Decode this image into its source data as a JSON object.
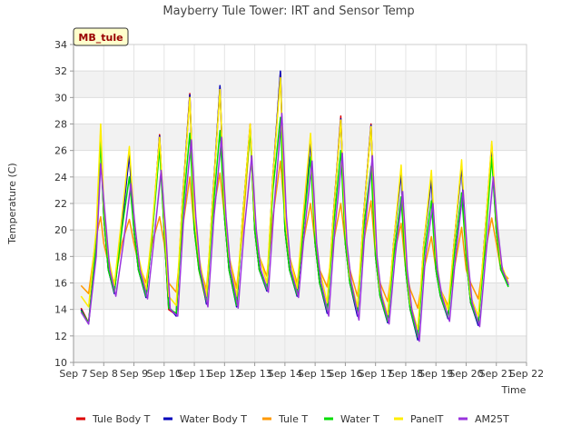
{
  "chart_data": {
    "type": "line",
    "title": "Mayberry Tule Tower: IRT and Sensor Temp",
    "xlabel": "Time",
    "ylabel": "Temperature (C)",
    "ylim": [
      10,
      34
    ],
    "xlim": [
      7,
      22
    ],
    "yticks": [
      10,
      12,
      14,
      16,
      18,
      20,
      22,
      24,
      26,
      28,
      30,
      32,
      34
    ],
    "xticks": [
      {
        "v": 7,
        "label": "Sep 7"
      },
      {
        "v": 8,
        "label": "Sep 8"
      },
      {
        "v": 9,
        "label": "Sep 9"
      },
      {
        "v": 10,
        "label": "Sep 10"
      },
      {
        "v": 11,
        "label": "Sep 11"
      },
      {
        "v": 12,
        "label": "Sep 12"
      },
      {
        "v": 13,
        "label": "Sep 13"
      },
      {
        "v": 14,
        "label": "Sep 14"
      },
      {
        "v": 15,
        "label": "Sep 15"
      },
      {
        "v": 16,
        "label": "Sep 16"
      },
      {
        "v": 17,
        "label": "Sep 17"
      },
      {
        "v": 18,
        "label": "Sep 18"
      },
      {
        "v": 19,
        "label": "Sep 19"
      },
      {
        "v": 20,
        "label": "Sep 20"
      },
      {
        "v": 21,
        "label": "Sep 21"
      },
      {
        "v": 22,
        "label": "Sep 22"
      }
    ],
    "grid": true,
    "annotation": "MB_tule",
    "legend_position": "bottom",
    "series": [
      {
        "name": "Tule Body T",
        "color": "#dd0000",
        "x": [
          7.25,
          7.5,
          7.75,
          7.9,
          8.0,
          8.15,
          8.35,
          8.6,
          8.85,
          9.0,
          9.15,
          9.4,
          9.6,
          9.85,
          10.0,
          10.15,
          10.4,
          10.6,
          10.85,
          11.0,
          11.15,
          11.4,
          11.6,
          11.85,
          12.0,
          12.15,
          12.4,
          12.6,
          12.85,
          13.0,
          13.15,
          13.4,
          13.6,
          13.85,
          14.0,
          14.15,
          14.4,
          14.6,
          14.85,
          15.0,
          15.15,
          15.4,
          15.6,
          15.85,
          16.0,
          16.15,
          16.4,
          16.6,
          16.85,
          17.0,
          17.15,
          17.4,
          17.6,
          17.85,
          18.0,
          18.15,
          18.4,
          18.6,
          18.85,
          19.0,
          19.15,
          19.4,
          19.6,
          19.85,
          20.0,
          20.15,
          20.4,
          20.6,
          20.85,
          21.0,
          21.15,
          21.4
        ],
        "y": [
          14.1,
          13.0,
          19.0,
          27.5,
          21.0,
          17.0,
          15.3,
          20.5,
          25.8,
          20.0,
          17.0,
          15.0,
          19.5,
          27.2,
          20.0,
          14.0,
          13.6,
          22.0,
          30.3,
          20.0,
          17.0,
          14.5,
          22.0,
          30.8,
          21.0,
          17.0,
          14.3,
          21.0,
          28.0,
          20.0,
          17.0,
          15.5,
          24.0,
          31.9,
          20.0,
          17.0,
          15.1,
          20.0,
          27.0,
          19.0,
          16.0,
          13.8,
          21.0,
          28.6,
          19.0,
          16.0,
          13.6,
          21.0,
          28.0,
          18.0,
          15.0,
          13.1,
          19.0,
          24.5,
          17.0,
          14.0,
          11.8,
          19.0,
          24.0,
          17.0,
          15.0,
          13.4,
          19.0,
          25.0,
          18.0,
          14.5,
          12.9,
          19.0,
          26.5,
          20.0,
          17.0,
          16.0
        ]
      },
      {
        "name": "Water Body T",
        "color": "#0000bb",
        "x": [
          7.25,
          7.5,
          7.75,
          7.9,
          8.0,
          8.15,
          8.35,
          8.6,
          8.85,
          9.0,
          9.15,
          9.4,
          9.6,
          9.85,
          10.0,
          10.15,
          10.4,
          10.6,
          10.85,
          11.0,
          11.15,
          11.4,
          11.6,
          11.85,
          12.0,
          12.15,
          12.4,
          12.6,
          12.85,
          13.0,
          13.15,
          13.4,
          13.6,
          13.85,
          14.0,
          14.15,
          14.4,
          14.6,
          14.85,
          15.0,
          15.15,
          15.4,
          15.6,
          15.85,
          16.0,
          16.15,
          16.4,
          16.6,
          16.85,
          17.0,
          17.15,
          17.4,
          17.6,
          17.85,
          18.0,
          18.15,
          18.4,
          18.6,
          18.85,
          19.0,
          19.15,
          19.4,
          19.6,
          19.85,
          20.0,
          20.15,
          20.4,
          20.6,
          20.85,
          21.0,
          21.15,
          21.4
        ],
        "y": [
          14.0,
          12.9,
          19.0,
          27.3,
          21.0,
          17.0,
          15.2,
          20.3,
          25.7,
          20.0,
          17.0,
          14.9,
          19.5,
          27.1,
          20.0,
          14.2,
          13.5,
          22.0,
          30.2,
          20.0,
          17.5,
          14.4,
          22.0,
          30.9,
          21.0,
          17.0,
          14.2,
          21.0,
          27.8,
          20.0,
          17.0,
          15.4,
          24.0,
          32.0,
          20.0,
          17.0,
          15.0,
          20.0,
          26.8,
          19.0,
          16.0,
          13.7,
          21.0,
          28.4,
          19.0,
          16.0,
          13.5,
          21.0,
          27.9,
          18.0,
          15.0,
          13.0,
          19.0,
          24.3,
          17.0,
          14.0,
          11.7,
          19.0,
          23.8,
          17.0,
          15.0,
          13.3,
          19.0,
          24.8,
          18.0,
          14.5,
          12.8,
          19.0,
          26.3,
          20.0,
          17.0,
          15.8
        ]
      },
      {
        "name": "Tule T",
        "color": "#ff9900",
        "x": [
          7.25,
          7.5,
          7.75,
          7.9,
          8.0,
          8.15,
          8.35,
          8.6,
          8.85,
          9.0,
          9.15,
          9.4,
          9.6,
          9.85,
          10.0,
          10.15,
          10.4,
          10.6,
          10.85,
          11.0,
          11.15,
          11.4,
          11.6,
          11.85,
          12.0,
          12.15,
          12.4,
          12.6,
          12.85,
          13.0,
          13.15,
          13.4,
          13.6,
          13.85,
          14.0,
          14.15,
          14.4,
          14.6,
          14.85,
          15.0,
          15.15,
          15.4,
          15.6,
          15.85,
          16.0,
          16.15,
          16.4,
          16.6,
          16.85,
          17.0,
          17.15,
          17.4,
          17.6,
          17.85,
          18.0,
          18.15,
          18.4,
          18.6,
          18.85,
          19.0,
          19.15,
          19.4,
          19.6,
          19.85,
          20.0,
          20.15,
          20.4,
          20.6,
          20.85,
          21.0,
          21.15,
          21.4
        ],
        "y": [
          15.8,
          15.2,
          19.5,
          21.0,
          19.0,
          17.5,
          16.0,
          19.0,
          20.8,
          19.0,
          17.5,
          16.0,
          19.0,
          21.0,
          19.0,
          16.0,
          15.3,
          20.0,
          24.0,
          20.0,
          17.5,
          15.5,
          21.0,
          24.3,
          21.0,
          18.0,
          15.6,
          20.0,
          27.5,
          20.0,
          18.0,
          16.5,
          21.0,
          25.2,
          21.0,
          18.0,
          16.0,
          19.0,
          22.0,
          19.0,
          17.0,
          15.7,
          19.0,
          22.0,
          19.0,
          17.0,
          15.0,
          19.0,
          22.2,
          18.0,
          16.0,
          14.6,
          18.0,
          20.5,
          17.0,
          15.5,
          14.1,
          17.0,
          19.5,
          17.0,
          15.5,
          14.3,
          17.0,
          20.2,
          17.0,
          16.0,
          14.8,
          18.0,
          20.9,
          19.0,
          17.0,
          16.3
        ]
      },
      {
        "name": "Water T",
        "color": "#00dd00",
        "x": [
          7.25,
          7.5,
          7.75,
          7.9,
          8.0,
          8.15,
          8.35,
          8.6,
          8.85,
          9.0,
          9.15,
          9.4,
          9.6,
          9.85,
          10.0,
          10.15,
          10.4,
          10.6,
          10.85,
          11.0,
          11.15,
          11.4,
          11.6,
          11.85,
          12.0,
          12.15,
          12.4,
          12.6,
          12.85,
          13.0,
          13.15,
          13.4,
          13.6,
          13.85,
          14.0,
          14.15,
          14.4,
          14.6,
          14.85,
          15.0,
          15.15,
          15.4,
          15.6,
          15.85,
          16.0,
          16.15,
          16.4,
          16.6,
          16.85,
          17.0,
          17.15,
          17.4,
          17.6,
          17.85,
          18.0,
          18.15,
          18.4,
          18.6,
          18.85,
          19.0,
          19.15,
          19.4,
          19.6,
          19.85,
          20.0,
          20.15,
          20.4,
          20.6,
          20.85,
          21.0,
          21.15,
          21.4
        ],
        "y": [
          13.9,
          13.0,
          19.0,
          26.8,
          21.0,
          17.0,
          15.3,
          20.0,
          24.0,
          20.0,
          17.0,
          15.0,
          19.5,
          26.2,
          20.0,
          14.1,
          13.7,
          21.0,
          27.3,
          20.0,
          17.0,
          14.6,
          21.0,
          27.5,
          21.0,
          17.0,
          14.3,
          21.0,
          27.6,
          20.0,
          17.0,
          15.5,
          23.0,
          28.5,
          20.0,
          17.0,
          15.1,
          20.0,
          25.5,
          19.0,
          16.0,
          13.9,
          20.0,
          26.0,
          19.0,
          16.0,
          13.8,
          20.0,
          24.8,
          18.0,
          15.0,
          13.1,
          18.0,
          22.5,
          17.0,
          14.0,
          11.9,
          18.0,
          22.2,
          17.0,
          15.0,
          13.4,
          18.0,
          22.8,
          18.0,
          14.5,
          13.0,
          18.0,
          25.5,
          20.0,
          17.0,
          15.7
        ]
      },
      {
        "name": "PanelT",
        "color": "#ffee00",
        "x": [
          7.25,
          7.5,
          7.75,
          7.9,
          8.0,
          8.15,
          8.35,
          8.6,
          8.85,
          9.0,
          9.15,
          9.4,
          9.6,
          9.85,
          10.0,
          10.15,
          10.4,
          10.6,
          10.85,
          11.0,
          11.15,
          11.4,
          11.6,
          11.85,
          12.0,
          12.15,
          12.4,
          12.6,
          12.85,
          13.0,
          13.15,
          13.4,
          13.6,
          13.85,
          14.0,
          14.15,
          14.4,
          14.6,
          14.85,
          15.0,
          15.15,
          15.4,
          15.6,
          15.85,
          16.0,
          16.15,
          16.4,
          16.6,
          16.85,
          17.0,
          17.15,
          17.4,
          17.6,
          17.85,
          18.0,
          18.15,
          18.4,
          18.6,
          18.85,
          19.0,
          19.15,
          19.4,
          19.6,
          19.85,
          20.0,
          20.15,
          20.4,
          20.6,
          20.85,
          21.0,
          21.15,
          21.4
        ],
        "y": [
          15.0,
          14.2,
          20.0,
          28.0,
          22.0,
          18.0,
          15.8,
          21.0,
          26.3,
          21.0,
          18.0,
          15.5,
          20.0,
          27.0,
          21.0,
          15.0,
          14.3,
          22.0,
          30.0,
          21.0,
          18.0,
          15.0,
          22.0,
          30.6,
          22.0,
          18.0,
          15.0,
          21.0,
          28.0,
          21.0,
          18.0,
          16.0,
          24.0,
          31.5,
          21.0,
          18.0,
          15.6,
          21.0,
          27.3,
          20.0,
          17.0,
          14.5,
          21.0,
          28.3,
          20.0,
          16.5,
          14.2,
          21.0,
          27.8,
          19.0,
          15.5,
          13.6,
          19.0,
          24.9,
          18.0,
          14.5,
          12.5,
          19.0,
          24.5,
          18.0,
          15.5,
          14.0,
          19.0,
          25.3,
          19.0,
          15.0,
          13.5,
          19.0,
          26.7,
          21.0,
          17.5,
          16.0
        ]
      },
      {
        "name": "AM25T",
        "color": "#9933dd",
        "x": [
          7.25,
          7.5,
          7.75,
          7.9,
          8.05,
          8.2,
          8.4,
          8.65,
          8.9,
          9.05,
          9.2,
          9.45,
          9.65,
          9.9,
          10.05,
          10.2,
          10.45,
          10.65,
          10.9,
          11.05,
          11.2,
          11.45,
          11.65,
          11.9,
          12.05,
          12.2,
          12.45,
          12.65,
          12.9,
          13.05,
          13.2,
          13.45,
          13.65,
          13.9,
          14.05,
          14.2,
          14.45,
          14.65,
          14.9,
          15.05,
          15.2,
          15.45,
          15.65,
          15.9,
          16.05,
          16.2,
          16.45,
          16.65,
          16.9,
          17.05,
          17.2,
          17.45,
          17.65,
          17.9,
          18.05,
          18.2,
          18.45,
          18.65,
          18.9,
          19.05,
          19.2,
          19.45,
          19.65,
          19.9,
          20.05,
          20.2,
          20.45,
          20.65,
          20.9,
          21.05,
          21.2,
          21.4
        ],
        "y": [
          13.8,
          12.9,
          18.0,
          25.0,
          21.0,
          17.0,
          15.0,
          19.0,
          23.5,
          20.0,
          17.0,
          14.8,
          19.0,
          24.5,
          20.0,
          14.0,
          13.5,
          21.0,
          26.8,
          21.0,
          17.0,
          14.2,
          21.0,
          27.0,
          21.0,
          17.0,
          14.1,
          20.0,
          25.6,
          20.0,
          17.0,
          15.3,
          22.0,
          28.8,
          21.0,
          17.0,
          14.9,
          20.0,
          25.2,
          19.0,
          16.0,
          13.5,
          20.0,
          25.8,
          19.0,
          16.0,
          13.2,
          20.0,
          25.6,
          18.0,
          15.0,
          12.9,
          18.0,
          22.9,
          17.0,
          14.0,
          11.6,
          18.0,
          22.0,
          17.0,
          15.0,
          13.1,
          18.0,
          23.0,
          18.0,
          14.5,
          12.7,
          18.0,
          24.0,
          20.0,
          17.0,
          15.9
        ]
      }
    ]
  }
}
